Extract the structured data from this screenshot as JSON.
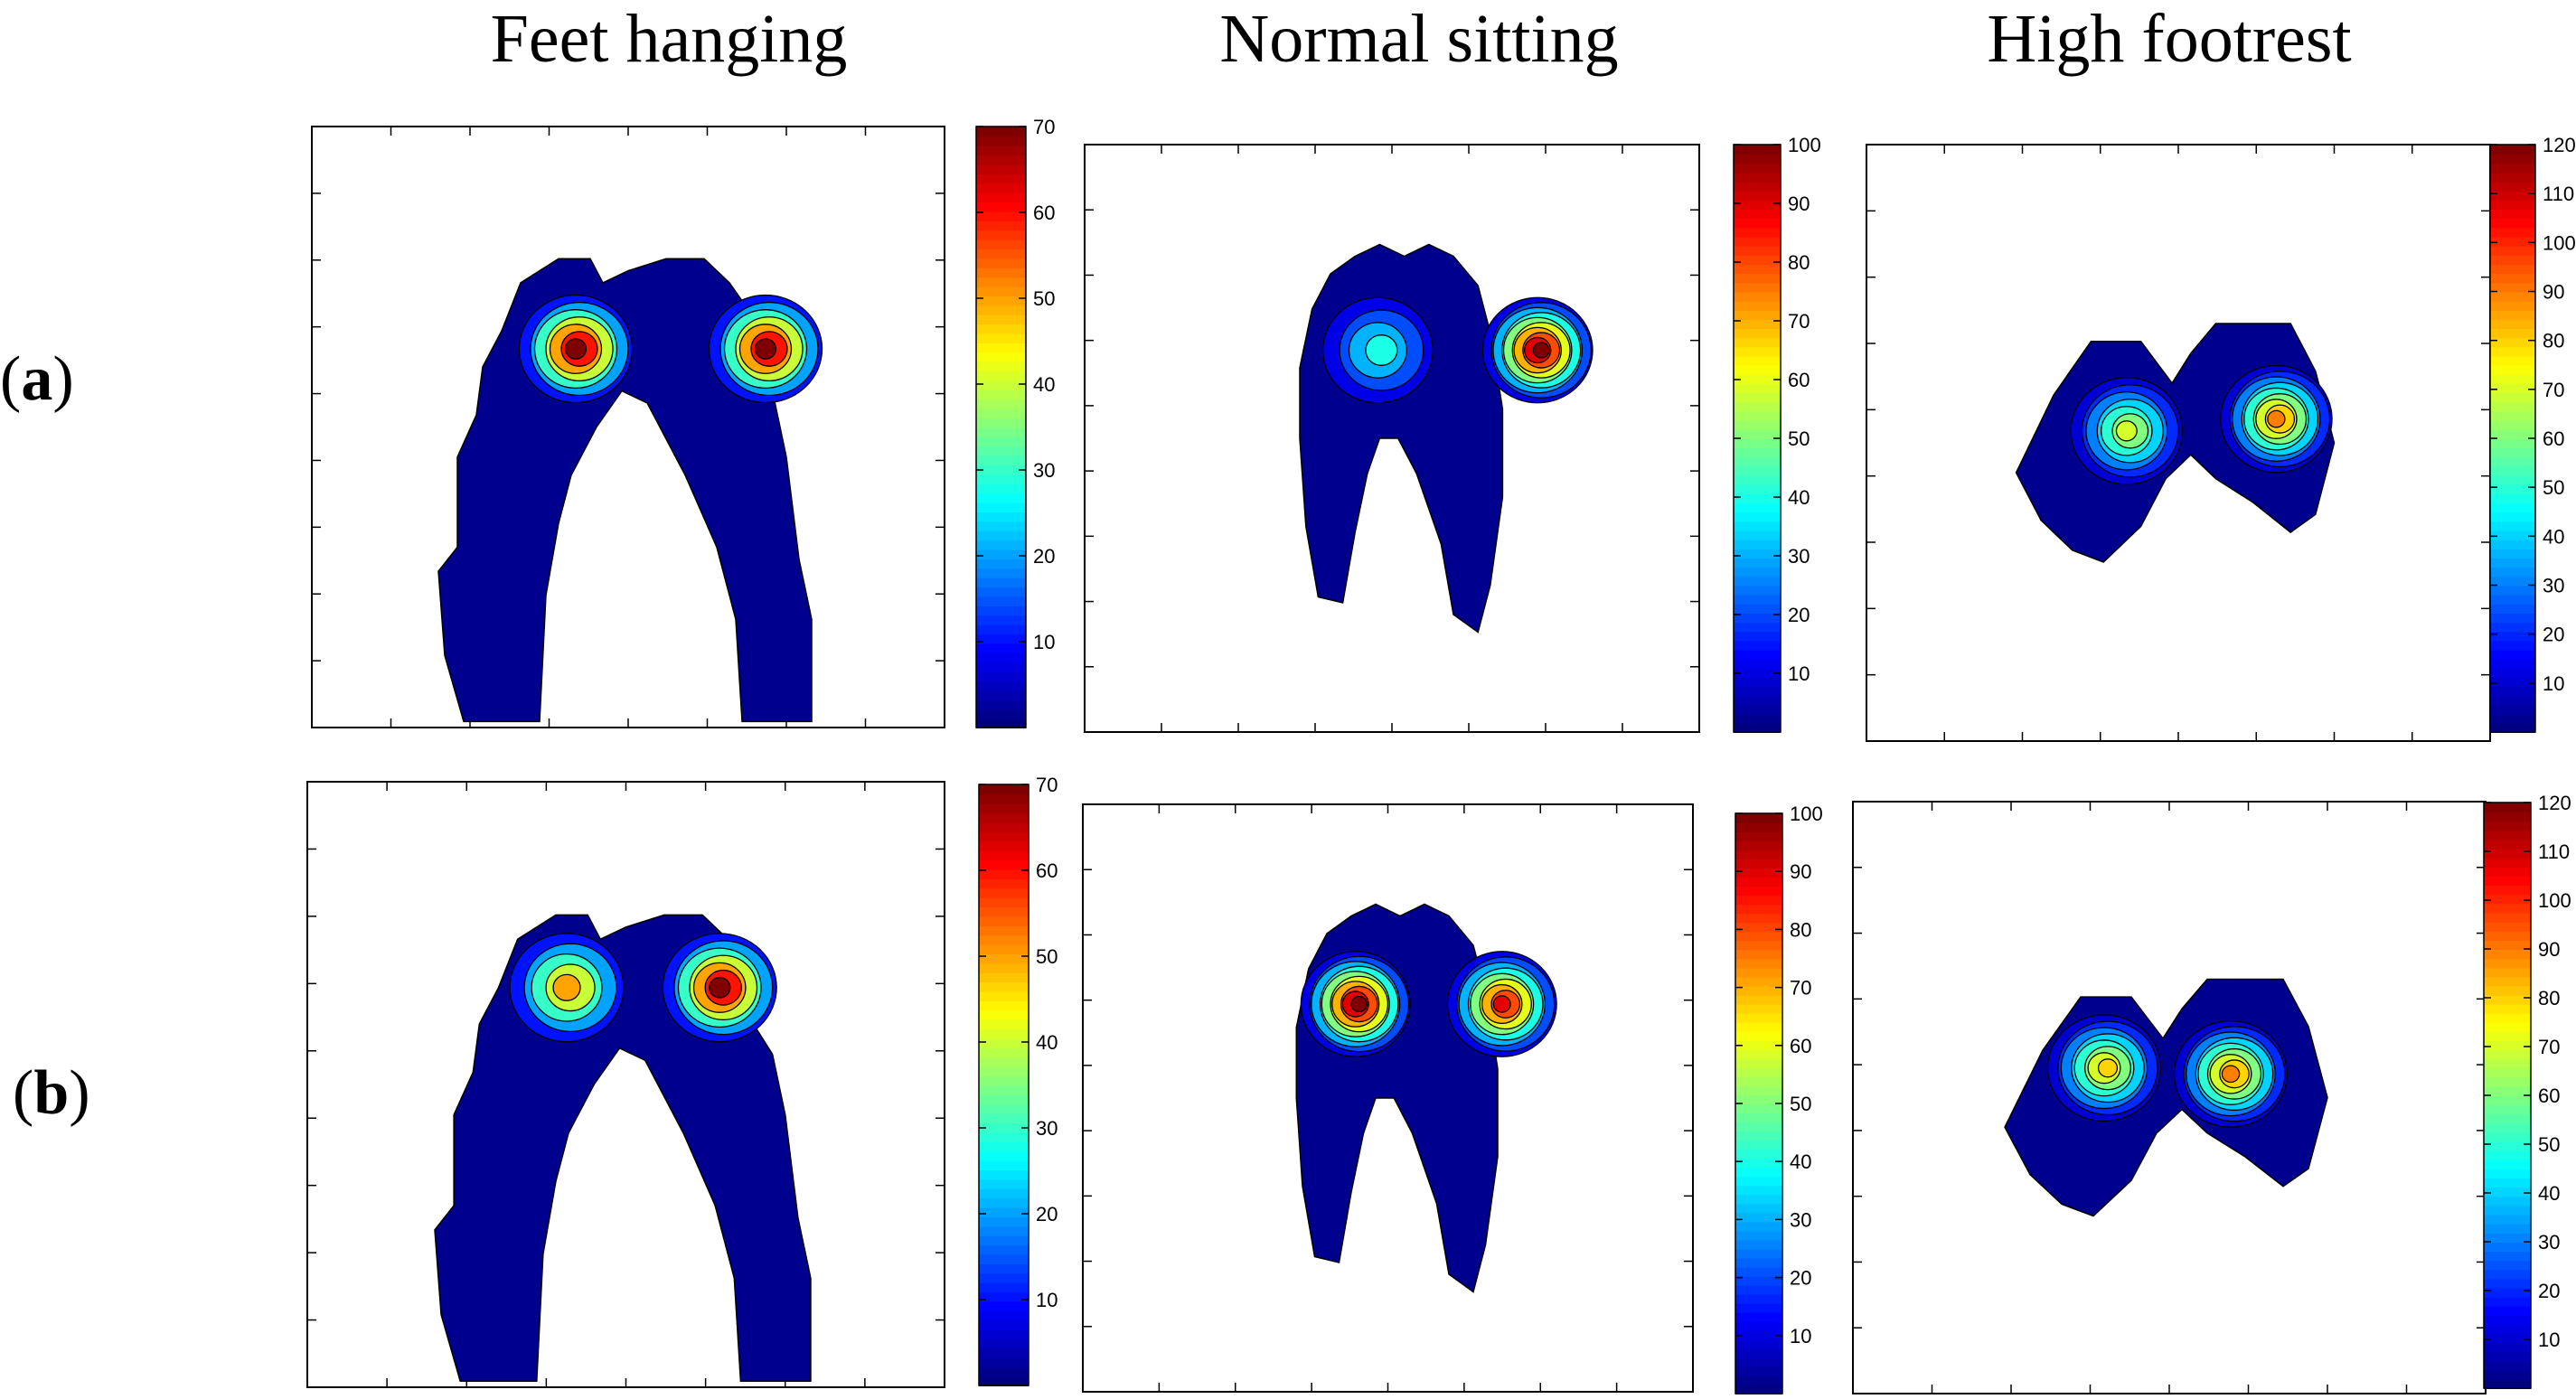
{
  "column_titles": [
    "Feet hanging",
    "Normal sitting",
    "High footrest"
  ],
  "row_labels": [
    {
      "open": "(",
      "letter": "a",
      "close": ")"
    },
    {
      "open": "(",
      "letter": "b",
      "close": ")"
    }
  ],
  "colors": {
    "dark_blue": "#00008f",
    "blue": "#0000ff",
    "cyan": "#00ffff",
    "yellow": "#ffff00",
    "red": "#ff0000",
    "dark_red": "#800000",
    "contour_line": "#000000"
  },
  "chart_data": [
    {
      "type": "heatmap",
      "row": "a",
      "column": "Feet hanging",
      "colorbar": {
        "min": 0,
        "max": 70,
        "ticks": [
          10,
          20,
          30,
          40,
          50,
          60,
          70
        ]
      },
      "shape": "thighs",
      "peaks": [
        70,
        70
      ]
    },
    {
      "type": "heatmap",
      "row": "a",
      "column": "Normal sitting",
      "colorbar": {
        "min": 0,
        "max": 100,
        "ticks": [
          10,
          20,
          30,
          40,
          50,
          60,
          70,
          80,
          90,
          100
        ]
      },
      "shape": "thighs",
      "peaks": [
        40,
        100
      ]
    },
    {
      "type": "heatmap",
      "row": "a",
      "column": "High footrest",
      "colorbar": {
        "min": 0,
        "max": 120,
        "ticks": [
          10,
          20,
          30,
          40,
          50,
          60,
          70,
          80,
          90,
          100,
          110,
          120
        ]
      },
      "shape": "buttocks",
      "peaks": [
        70,
        90
      ]
    },
    {
      "type": "heatmap",
      "row": "b",
      "column": "Feet hanging",
      "colorbar": {
        "min": 0,
        "max": 70,
        "ticks": [
          10,
          20,
          30,
          40,
          50,
          60,
          70
        ]
      },
      "shape": "thighs",
      "peaks": [
        50,
        70
      ]
    },
    {
      "type": "heatmap",
      "row": "b",
      "column": "Normal sitting",
      "colorbar": {
        "min": 0,
        "max": 100,
        "ticks": [
          10,
          20,
          30,
          40,
          50,
          60,
          70,
          80,
          90,
          100
        ]
      },
      "shape": "thighs",
      "peaks": [
        100,
        90
      ]
    },
    {
      "type": "heatmap",
      "row": "b",
      "column": "High footrest",
      "colorbar": {
        "min": 0,
        "max": 120,
        "ticks": [
          10,
          20,
          30,
          40,
          50,
          60,
          70,
          80,
          90,
          100,
          110,
          120
        ]
      },
      "shape": "buttocks",
      "peaks": [
        80,
        90
      ]
    }
  ]
}
